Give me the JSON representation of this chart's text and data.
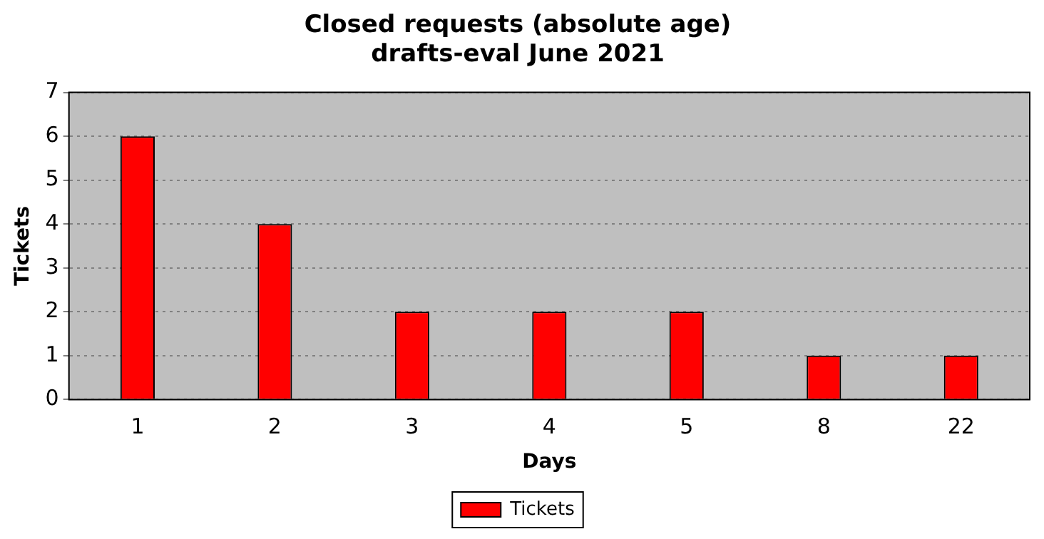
{
  "chart_data": {
    "type": "bar",
    "title": "Closed requests (absolute age)\ndrafts-eval June 2021",
    "xlabel": "Days",
    "ylabel": "Tickets",
    "categories": [
      "1",
      "2",
      "3",
      "4",
      "5",
      "8",
      "22"
    ],
    "series": [
      {
        "name": "Tickets",
        "color": "#ff0000",
        "values": [
          6,
          4,
          2,
          2,
          2,
          1,
          1
        ]
      }
    ],
    "ylim": [
      0,
      7
    ],
    "yticks": [
      0,
      1,
      2,
      3,
      4,
      5,
      6,
      7
    ],
    "grid": "y",
    "legend": "bottom"
  }
}
